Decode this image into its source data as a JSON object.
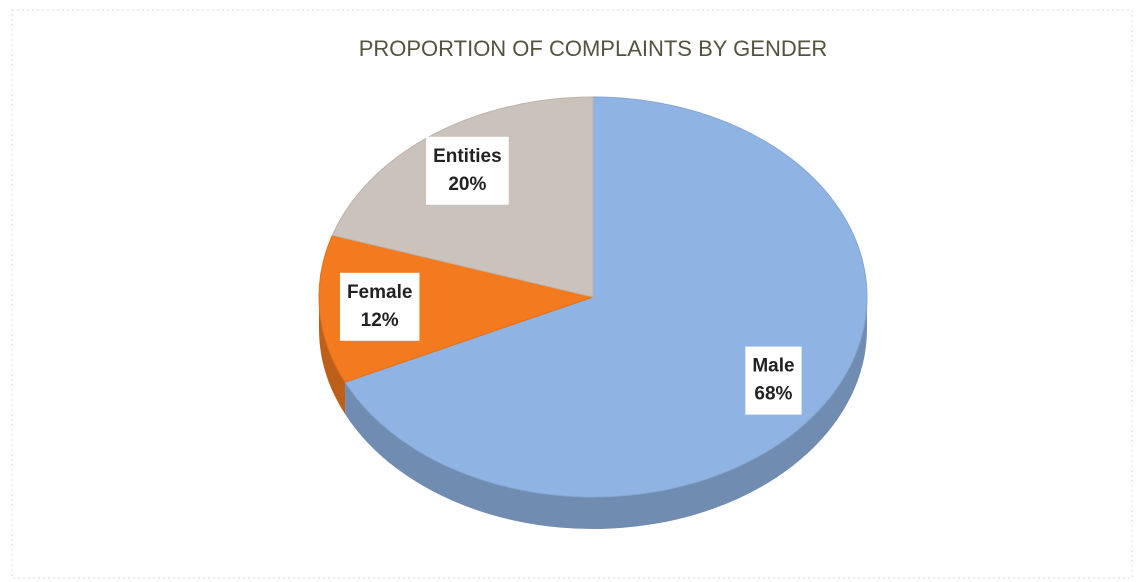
{
  "chart_data": {
    "type": "pie",
    "title": "PROPORTION OF COMPLAINTS BY GENDER",
    "categories": [
      "Male",
      "Female",
      "Entities"
    ],
    "values": [
      68,
      12,
      20
    ],
    "value_labels": [
      "68%",
      "12%",
      "20%"
    ],
    "colors": [
      "#8fb4e3",
      "#f47a20",
      "#cbc3bb"
    ]
  }
}
